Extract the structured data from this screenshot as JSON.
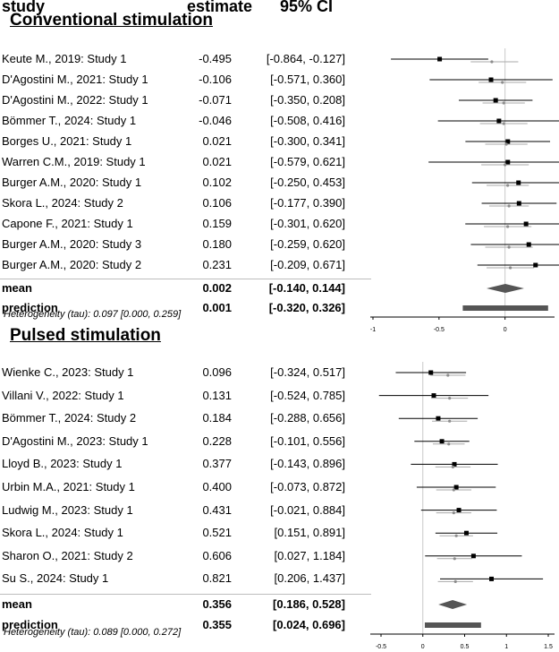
{
  "header": {
    "study": "study",
    "estimate": "estimate",
    "ci": "95% CI"
  },
  "chart_data": {
    "type": "forest",
    "panels": [
      {
        "title": "Conventional stimulation",
        "xlim": [
          -1,
          0.5
        ],
        "xticks": [
          -1,
          -0.5,
          0,
          0.5
        ],
        "xtick_labels": [
          "-1",
          "-0.5",
          "0",
          "0.5"
        ],
        "studies": [
          {
            "name": "Keute M., 2019: Study 1",
            "estimate": -0.495,
            "lower": -0.864,
            "upper": -0.127,
            "ci_text": "[-0.864, -0.127]",
            "estimate_text": "-0.495",
            "shrunk": -0.1,
            "shrunk_lower": -0.26,
            "shrunk_upper": 0.1
          },
          {
            "name": "D'Agostini M., 2021: Study 1",
            "estimate": -0.106,
            "lower": -0.571,
            "upper": 0.36,
            "ci_text": "[-0.571, 0.360]",
            "estimate_text": "-0.106",
            "shrunk": -0.02,
            "shrunk_lower": -0.2,
            "shrunk_upper": 0.16
          },
          {
            "name": "D'Agostini M., 2022: Study 1",
            "estimate": -0.071,
            "lower": -0.35,
            "upper": 0.208,
            "ci_text": "[-0.350, 0.208]",
            "estimate_text": "-0.071",
            "shrunk": -0.01,
            "shrunk_lower": -0.17,
            "shrunk_upper": 0.15
          },
          {
            "name": "Bömmer T., 2024: Study 1",
            "estimate": -0.046,
            "lower": -0.508,
            "upper": 0.416,
            "ci_text": "[-0.508, 0.416]",
            "estimate_text": "-0.046",
            "shrunk": -0.01,
            "shrunk_lower": -0.19,
            "shrunk_upper": 0.17
          },
          {
            "name": "Borges U., 2021: Study 1",
            "estimate": 0.021,
            "lower": -0.3,
            "upper": 0.341,
            "ci_text": "[-0.300, 0.341]",
            "estimate_text": "0.021",
            "shrunk": 0.01,
            "shrunk_lower": -0.15,
            "shrunk_upper": 0.17
          },
          {
            "name": "Warren C.M., 2019: Study 1",
            "estimate": 0.021,
            "lower": -0.579,
            "upper": 0.621,
            "ci_text": "[-0.579, 0.621]",
            "estimate_text": "0.021",
            "shrunk": 0.0,
            "shrunk_lower": -0.18,
            "shrunk_upper": 0.18
          },
          {
            "name": "Burger A.M., 2020: Study 1",
            "estimate": 0.102,
            "lower": -0.25,
            "upper": 0.453,
            "ci_text": "[-0.250, 0.453]",
            "estimate_text": "0.102",
            "shrunk": 0.02,
            "shrunk_lower": -0.14,
            "shrunk_upper": 0.18
          },
          {
            "name": "Skora L., 2024: Study 2",
            "estimate": 0.106,
            "lower": -0.177,
            "upper": 0.39,
            "ci_text": "[-0.177, 0.390]",
            "estimate_text": "0.106",
            "shrunk": 0.03,
            "shrunk_lower": -0.12,
            "shrunk_upper": 0.18
          },
          {
            "name": "Capone F., 2021: Study 1",
            "estimate": 0.159,
            "lower": -0.301,
            "upper": 0.62,
            "ci_text": "[-0.301, 0.620]",
            "estimate_text": "0.159",
            "shrunk": 0.02,
            "shrunk_lower": -0.16,
            "shrunk_upper": 0.2
          },
          {
            "name": "Burger A.M., 2020: Study 3",
            "estimate": 0.18,
            "lower": -0.259,
            "upper": 0.62,
            "ci_text": "[-0.259, 0.620]",
            "estimate_text": "0.180",
            "shrunk": 0.03,
            "shrunk_lower": -0.15,
            "shrunk_upper": 0.21
          },
          {
            "name": "Burger A.M., 2020: Study 2",
            "estimate": 0.231,
            "lower": -0.209,
            "upper": 0.671,
            "ci_text": "[-0.209, 0.671]",
            "estimate_text": "0.231",
            "shrunk": 0.04,
            "shrunk_lower": -0.14,
            "shrunk_upper": 0.22
          }
        ],
        "mean": {
          "label": "mean",
          "estimate": 0.002,
          "lower": -0.14,
          "upper": 0.144,
          "estimate_text": "0.002",
          "ci_text": "[-0.140, 0.144]"
        },
        "prediction": {
          "label": "prediction",
          "estimate": 0.001,
          "lower": -0.32,
          "upper": 0.326,
          "estimate_text": "0.001",
          "ci_text": "[-0.320, 0.326]"
        },
        "heterogeneity": "Heterogeneity (tau): 0.097 [0.000, 0.259]"
      },
      {
        "title": "Pulsed stimulation",
        "xlim": [
          -0.5,
          1.5
        ],
        "xticks": [
          -0.5,
          0,
          0.5,
          1,
          1.5
        ],
        "xtick_labels": [
          "-0.5",
          "0",
          "0.5",
          "1",
          "1.5"
        ],
        "studies": [
          {
            "name": "Wienke C., 2023: Study 1",
            "estimate": 0.096,
            "lower": -0.324,
            "upper": 0.517,
            "ci_text": "[-0.324, 0.517]",
            "estimate_text": "0.096",
            "shrunk": 0.3,
            "shrunk_lower": 0.09,
            "shrunk_upper": 0.51
          },
          {
            "name": "Villani V., 2022: Study 1",
            "estimate": 0.131,
            "lower": -0.524,
            "upper": 0.785,
            "ci_text": "[-0.524, 0.785]",
            "estimate_text": "0.131",
            "shrunk": 0.32,
            "shrunk_lower": 0.1,
            "shrunk_upper": 0.54
          },
          {
            "name": "Bömmer T., 2024: Study 2",
            "estimate": 0.184,
            "lower": -0.288,
            "upper": 0.656,
            "ci_text": "[-0.288, 0.656]",
            "estimate_text": "0.184",
            "shrunk": 0.32,
            "shrunk_lower": 0.11,
            "shrunk_upper": 0.53
          },
          {
            "name": "D'Agostini M., 2023: Study 1",
            "estimate": 0.228,
            "lower": -0.101,
            "upper": 0.556,
            "ci_text": "[-0.101, 0.556]",
            "estimate_text": "0.228",
            "shrunk": 0.31,
            "shrunk_lower": 0.12,
            "shrunk_upper": 0.5
          },
          {
            "name": "Lloyd B., 2023: Study 1",
            "estimate": 0.377,
            "lower": -0.143,
            "upper": 0.896,
            "ci_text": "[-0.143, 0.896]",
            "estimate_text": "0.377",
            "shrunk": 0.36,
            "shrunk_lower": 0.15,
            "shrunk_upper": 0.57
          },
          {
            "name": "Urbin M.A., 2021: Study 1",
            "estimate": 0.4,
            "lower": -0.073,
            "upper": 0.872,
            "ci_text": "[-0.073, 0.872]",
            "estimate_text": "0.400",
            "shrunk": 0.37,
            "shrunk_lower": 0.16,
            "shrunk_upper": 0.58
          },
          {
            "name": "Ludwig M., 2023: Study 1",
            "estimate": 0.431,
            "lower": -0.021,
            "upper": 0.884,
            "ci_text": "[-0.021, 0.884]",
            "estimate_text": "0.431",
            "shrunk": 0.37,
            "shrunk_lower": 0.16,
            "shrunk_upper": 0.58
          },
          {
            "name": "Skora L., 2024: Study 1",
            "estimate": 0.521,
            "lower": 0.151,
            "upper": 0.891,
            "ci_text": "[0.151, 0.891]",
            "estimate_text": "0.521",
            "shrunk": 0.4,
            "shrunk_lower": 0.2,
            "shrunk_upper": 0.6
          },
          {
            "name": "Sharon O., 2021: Study 2",
            "estimate": 0.606,
            "lower": 0.027,
            "upper": 1.184,
            "ci_text": "[0.027, 1.184]",
            "estimate_text": "0.606",
            "shrunk": 0.38,
            "shrunk_lower": 0.17,
            "shrunk_upper": 0.59
          },
          {
            "name": "Su S., 2024: Study 1",
            "estimate": 0.821,
            "lower": 0.206,
            "upper": 1.437,
            "ci_text": "[0.206, 1.437]",
            "estimate_text": "0.821",
            "shrunk": 0.39,
            "shrunk_lower": 0.18,
            "shrunk_upper": 0.6
          }
        ],
        "mean": {
          "label": "mean",
          "estimate": 0.356,
          "lower": 0.186,
          "upper": 0.528,
          "estimate_text": "0.356",
          "ci_text": "[0.186, 0.528]"
        },
        "prediction": {
          "label": "prediction",
          "estimate": 0.355,
          "lower": 0.024,
          "upper": 0.696,
          "estimate_text": "0.355",
          "ci_text": "[0.024, 0.696]"
        },
        "heterogeneity": "Heterogeneity (tau): 0.089 [0.000, 0.272]"
      }
    ],
    "colors": {
      "study_square": "#000000",
      "ci_line": "#000000",
      "shrunk_marker": "#8c8c8c",
      "shrunk_line": "#aaaaaa",
      "diamond": "#555555",
      "prediction_bar": "#555555",
      "zero_line": "#c8c8c8",
      "axis": "#000000"
    }
  }
}
